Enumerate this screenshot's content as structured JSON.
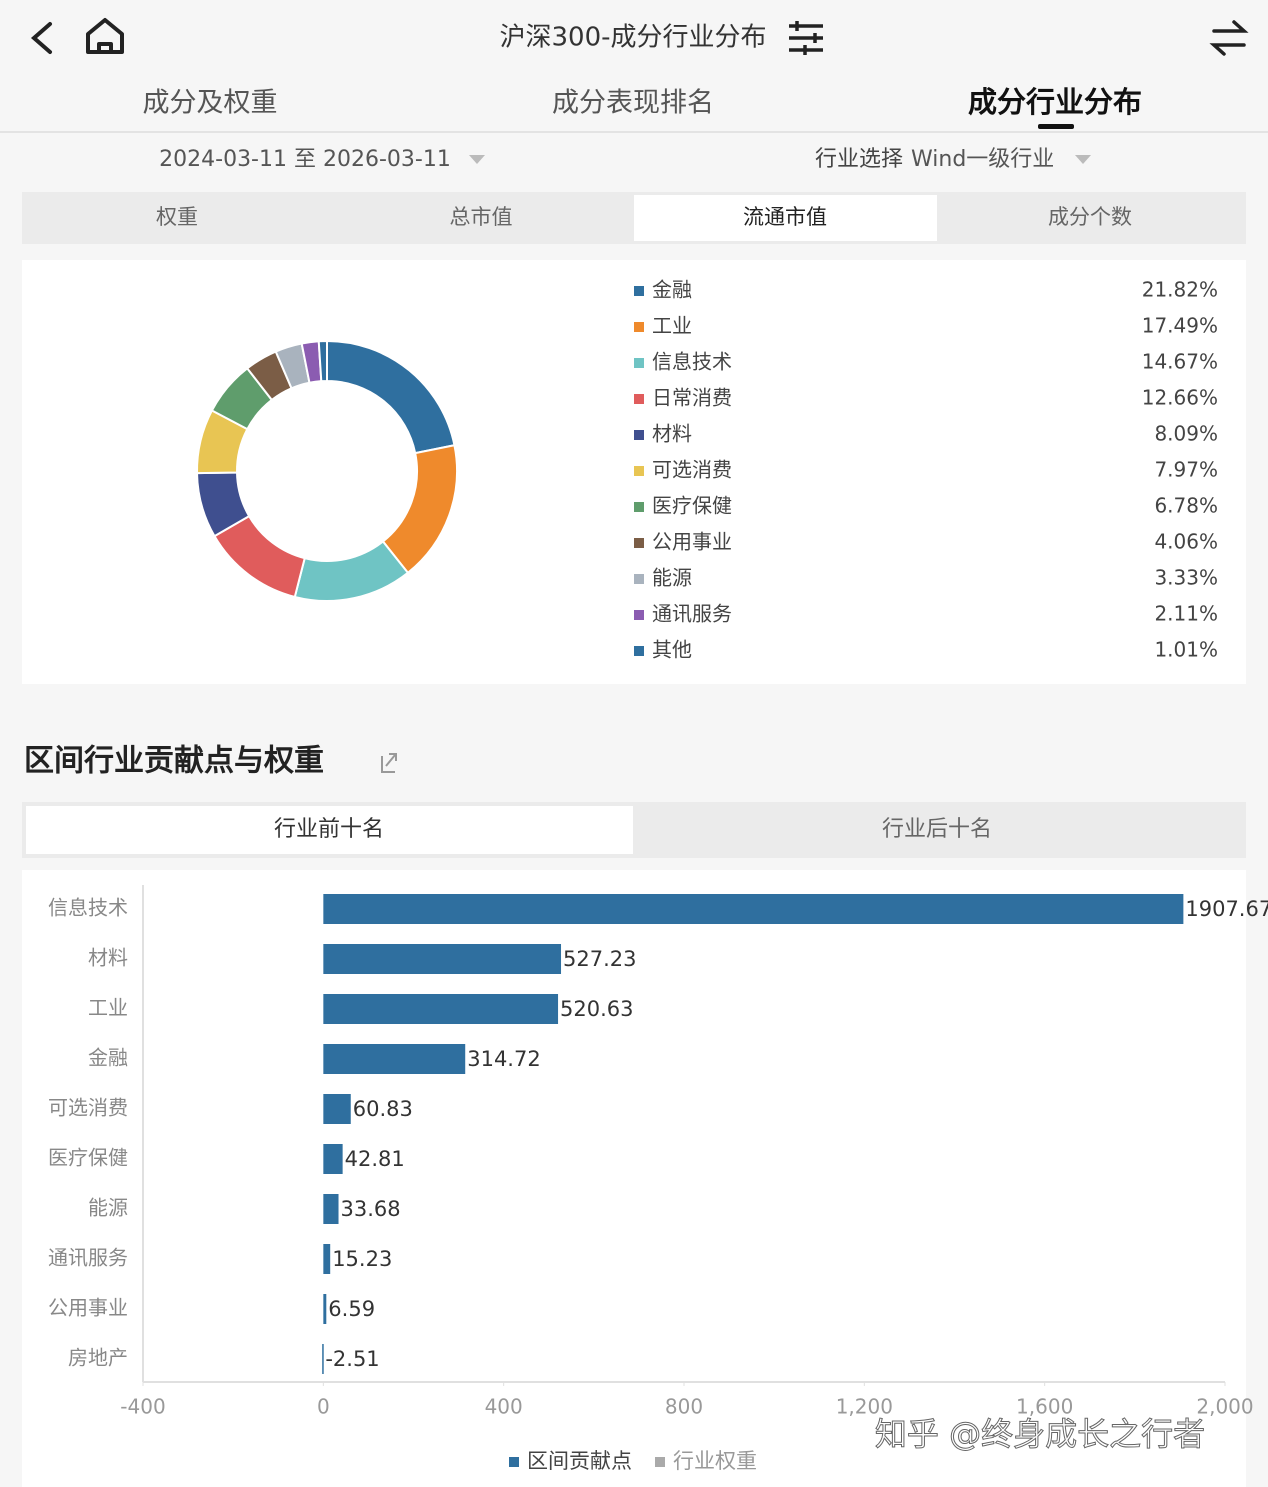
{
  "header": {
    "title": "沪深300-成分行业分布"
  },
  "tabs": [
    "成分及权重",
    "成分表现排名",
    "成分行业分布"
  ],
  "date_range": "2024-03-11 至 2026-03-11",
  "industry_select": {
    "label": "行业选择",
    "value": "Wind一级行业"
  },
  "metric_tabs": [
    "权重",
    "总市值",
    "流通市值",
    "成分个数"
  ],
  "section_title": "区间行业贡献点与权重",
  "rank_tabs": [
    "行业前十名",
    "行业后十名"
  ],
  "watermark": "知乎 @终身成长之行者",
  "chart_data": [
    {
      "type": "donut",
      "categories": [
        "金融",
        "工业",
        "信息技术",
        "日常消费",
        "材料",
        "可选消费",
        "医疗保健",
        "公用事业",
        "能源",
        "通讯服务",
        "其他"
      ],
      "values": [
        21.82,
        17.49,
        14.67,
        12.66,
        8.09,
        7.97,
        6.78,
        4.06,
        3.33,
        2.11,
        1.01
      ],
      "value_labels": [
        "21.82%",
        "17.49%",
        "14.67%",
        "12.66%",
        "8.09%",
        "7.97%",
        "6.78%",
        "4.06%",
        "3.33%",
        "2.11%",
        "1.01%"
      ],
      "colors": [
        "#2f6f9f",
        "#ef8a2c",
        "#6fc4c4",
        "#e05c5c",
        "#3f4f8f",
        "#e8c553",
        "#5f9d6c",
        "#7b5d46",
        "#a9b3be",
        "#8b5cb1",
        "#2f6f9f"
      ]
    },
    {
      "type": "hbar",
      "categories": [
        "信息技术",
        "材料",
        "工业",
        "金融",
        "可选消费",
        "医疗保健",
        "能源",
        "通讯服务",
        "公用事业",
        "房地产"
      ],
      "series": [
        {
          "name": "区间贡献点",
          "color": "#2f6f9f",
          "values": [
            1907.67,
            527.23,
            520.63,
            314.72,
            60.83,
            42.81,
            33.68,
            15.23,
            6.59,
            -2.51
          ]
        }
      ],
      "hidden_series": [
        {
          "name": "行业权重",
          "color": "#aaaaaa"
        }
      ],
      "xlim": [
        -400,
        2000
      ],
      "xticks": [
        -400,
        0,
        400,
        800,
        {
          "value": 1200,
          "label": "1,200"
        },
        {
          "value": 1600,
          "label": "1,600"
        },
        {
          "value": 2000,
          "label": "2,000"
        }
      ]
    }
  ]
}
